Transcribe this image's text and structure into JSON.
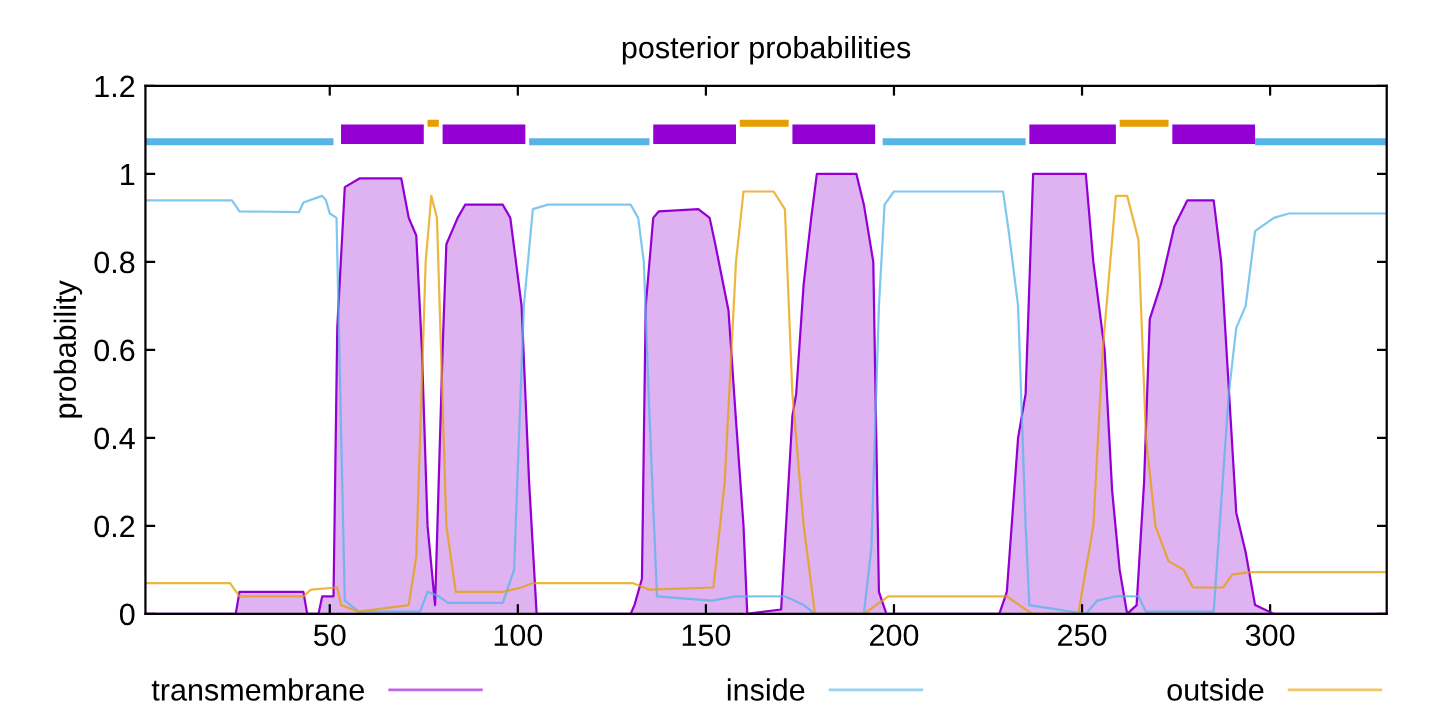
{
  "chart_data": {
    "type": "line",
    "title": "posterior probabilities",
    "ylabel": "probability",
    "xlim": [
      1,
      331
    ],
    "xticks": [
      50,
      100,
      150,
      200,
      250,
      300
    ],
    "ylim": [
      0,
      1.2
    ],
    "yticks": [
      0,
      0.2,
      0.4,
      0.6,
      0.8,
      1,
      1.2
    ],
    "grid": false,
    "legend": "bottom",
    "series": [
      {
        "name": "transmembrane",
        "type": "area",
        "color": "#9400d3",
        "x": [
          1,
          25,
          26,
          43,
          44,
          47,
          48,
          51,
          52,
          54,
          58,
          69,
          71,
          73,
          74.5,
          76,
          78,
          80,
          81,
          84,
          86,
          96,
          98,
          101,
          103,
          105,
          130,
          131,
          133,
          134,
          136,
          137.5,
          148,
          151,
          152.5,
          156,
          158,
          160,
          161,
          170,
          173,
          174,
          176,
          178,
          179.5,
          190,
          192,
          194.5,
          196,
          198,
          228,
          230,
          233,
          235,
          237,
          251,
          253,
          256,
          258,
          260,
          262,
          264.5,
          266.5,
          268,
          271,
          274.5,
          278,
          285,
          287,
          291,
          293.5,
          296,
          301,
          331
        ],
        "values": [
          0,
          0,
          0.05,
          0.05,
          0,
          0,
          0.04,
          0.04,
          0.65,
          0.97,
          0.99,
          0.99,
          0.9,
          0.86,
          0.6,
          0.2,
          0.02,
          0.6,
          0.84,
          0.9,
          0.93,
          0.93,
          0.9,
          0.7,
          0.3,
          0,
          0,
          0.02,
          0.08,
          0.7,
          0.9,
          0.915,
          0.92,
          0.9,
          0.84,
          0.69,
          0.44,
          0.2,
          0,
          0.01,
          0.45,
          0.5,
          0.75,
          0.9,
          1,
          1,
          0.93,
          0.8,
          0.05,
          0,
          0,
          0.05,
          0.4,
          0.5,
          1,
          1,
          0.8,
          0.6,
          0.28,
          0.1,
          0,
          0.02,
          0.3,
          0.67,
          0.75,
          0.88,
          0.94,
          0.94,
          0.8,
          0.23,
          0.14,
          0.02,
          0,
          0
        ]
      },
      {
        "name": "inside",
        "color": "#56b4e9",
        "x": [
          1,
          24,
          26,
          41.8,
          43,
          48,
          49,
          50,
          51.8,
          52.8,
          54,
          57.7,
          74,
          76,
          79,
          81.4,
          96,
          99,
          101.6,
          104,
          108,
          130,
          132,
          133.5,
          135,
          137,
          151.6,
          158,
          171,
          176,
          179,
          192,
          194,
          196,
          197.5,
          200,
          229,
          230.5,
          233,
          235,
          236,
          251,
          254,
          259,
          265,
          267,
          285,
          289,
          291,
          293.5,
          296,
          301,
          305,
          331
        ],
        "values": [
          0.94,
          0.94,
          0.915,
          0.913,
          0.935,
          0.95,
          0.94,
          0.91,
          0.9,
          0.5,
          0.03,
          0.005,
          0.005,
          0.05,
          0.04,
          0.025,
          0.025,
          0.1,
          0.7,
          0.92,
          0.93,
          0.93,
          0.9,
          0.8,
          0.45,
          0.04,
          0.03,
          0.04,
          0.04,
          0.02,
          0,
          0,
          0.15,
          0.7,
          0.93,
          0.96,
          0.96,
          0.87,
          0.7,
          0.2,
          0.02,
          0,
          0.03,
          0.04,
          0.04,
          0.005,
          0.005,
          0.5,
          0.65,
          0.7,
          0.87,
          0.9,
          0.91,
          0.91
        ]
      },
      {
        "name": "outside",
        "color": "#e69f00",
        "x": [
          1,
          23.5,
          26,
          43,
          45,
          52,
          53,
          57.7,
          71,
          73,
          75.5,
          77,
          78.5,
          81,
          83.5,
          96,
          101,
          104,
          130.5,
          135,
          152,
          155,
          158,
          160,
          168,
          171,
          173,
          176,
          179,
          192,
          198.5,
          230,
          235,
          237,
          249,
          253,
          255.5,
          259,
          262,
          265,
          267,
          269.5,
          273,
          277,
          279.5,
          287.5,
          290,
          295,
          331
        ],
        "values": [
          0.07,
          0.07,
          0.04,
          0.04,
          0.055,
          0.06,
          0.02,
          0.005,
          0.02,
          0.13,
          0.8,
          0.95,
          0.9,
          0.2,
          0.05,
          0.05,
          0.06,
          0.07,
          0.07,
          0.055,
          0.06,
          0.3,
          0.8,
          0.96,
          0.96,
          0.92,
          0.5,
          0.2,
          0,
          0,
          0.04,
          0.04,
          0.01,
          0,
          0,
          0.2,
          0.6,
          0.95,
          0.95,
          0.85,
          0.4,
          0.2,
          0.12,
          0.1,
          0.06,
          0.06,
          0.09,
          0.095,
          0.095
        ]
      },
      {
        "type": "step",
        "color": "#56b4e9",
        "x": [
          1,
          51,
          77,
          103,
          135,
          166,
          197,
          235,
          265,
          296,
          331
        ],
        "values": [
          1.073,
          1.073,
          null,
          1.073,
          1.073,
          null,
          1.073,
          1.073,
          null,
          1.073,
          1.073
        ]
      },
      {
        "type": "step",
        "color": "#e69f00",
        "x": [
          76,
          79,
          119,
          159,
          172,
          216,
          260,
          273
        ],
        "values": [
          1.115,
          1.115,
          null,
          1.115,
          1.115,
          null,
          1.115,
          1.115
        ]
      },
      {
        "type": "step",
        "color": "#9400d3",
        "x": [
          53,
          75,
          77.5,
          80,
          102,
          119,
          136,
          158,
          165.5,
          173,
          195,
          215.5,
          236,
          259,
          266.5,
          274,
          296
        ],
        "values": [
          1.09,
          1.09,
          null,
          1.09,
          1.09,
          null,
          1.09,
          1.09,
          null,
          1.09,
          1.09,
          null,
          1.09,
          1.09,
          null,
          1.09,
          1.09
        ]
      }
    ]
  }
}
